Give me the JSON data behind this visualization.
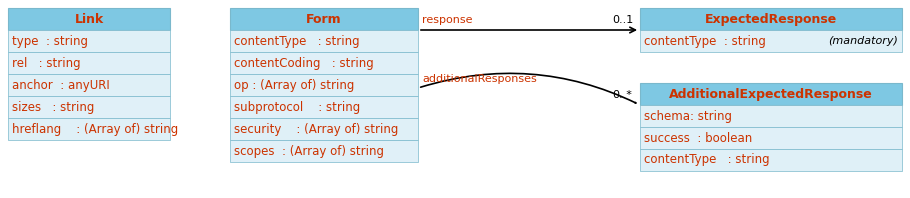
{
  "background_color": "#ffffff",
  "header_bg": "#7ec8e3",
  "row_bg_light": "#dff0f7",
  "row_bg_lighter": "#e8f6fb",
  "header_text_color": "#cc3300",
  "row_text_color": "#cc3300",
  "black_text": "#000000",
  "border_color": "#7ab8cc",
  "link_title": "Link",
  "link_rows": [
    "type  : string",
    "rel   : string",
    "anchor  : anyURI",
    "sizes   : string",
    "hreflang    : (Array of) string"
  ],
  "form_title": "Form",
  "form_rows": [
    "contentType   : string",
    "contentCoding   : string",
    "op : (Array of) string",
    "subprotocol    : string",
    "security    : (Array of) string",
    "scopes  : (Array of) string"
  ],
  "er_title": "ExpectedResponse",
  "er_rows": [
    [
      "contentType  : string",
      "(mandatory)"
    ]
  ],
  "aer_title": "AdditionalExpectedResponse",
  "aer_rows": [
    "schema: string",
    "success  : boolean",
    "contentType   : string"
  ],
  "arrow1_label": "response",
  "arrow1_mult": "0..1",
  "arrow2_label": "additionalResponses",
  "arrow2_mult": "0..*"
}
